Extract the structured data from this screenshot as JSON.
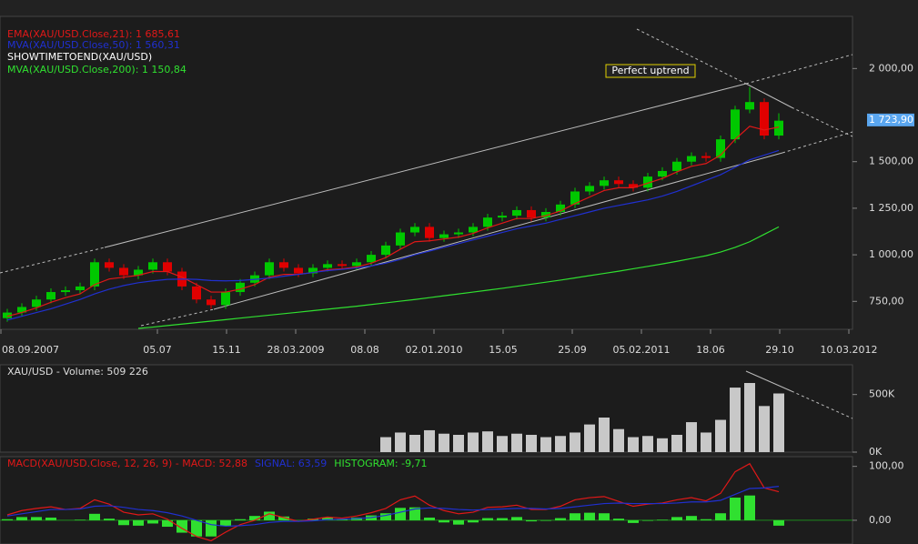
{
  "chart_data": [
    {
      "type": "candlestick",
      "x": [
        2,
        6,
        10,
        14,
        18,
        22,
        26,
        30,
        34,
        38,
        42,
        46,
        50,
        54,
        58,
        62,
        66,
        70,
        74,
        78,
        82,
        86,
        90,
        94,
        98,
        102,
        106,
        110,
        114,
        118,
        122,
        126,
        130,
        134,
        138,
        142,
        146,
        150,
        154,
        158,
        162,
        166,
        170,
        174,
        178,
        182,
        186,
        190,
        194,
        198,
        202,
        206,
        210,
        214
      ],
      "open": [
        660,
        690,
        720,
        760,
        800,
        810,
        830,
        960,
        930,
        890,
        920,
        960,
        910,
        830,
        760,
        730,
        800,
        850,
        890,
        960,
        930,
        900,
        930,
        950,
        940,
        960,
        1000,
        1050,
        1120,
        1150,
        1090,
        1110,
        1120,
        1150,
        1200,
        1210,
        1240,
        1200,
        1230,
        1270,
        1340,
        1370,
        1400,
        1380,
        1360,
        1420,
        1450,
        1500,
        1530,
        1520,
        1620,
        1780,
        1820,
        1640
      ],
      "high": [
        710,
        740,
        780,
        820,
        830,
        850,
        980,
        980,
        950,
        940,
        980,
        980,
        930,
        850,
        780,
        820,
        870,
        910,
        980,
        980,
        950,
        950,
        970,
        970,
        980,
        1020,
        1070,
        1140,
        1170,
        1170,
        1130,
        1140,
        1170,
        1220,
        1230,
        1260,
        1260,
        1250,
        1290,
        1360,
        1390,
        1420,
        1420,
        1400,
        1440,
        1470,
        1520,
        1550,
        1550,
        1640,
        1800,
        1900,
        1840,
        1760
      ],
      "low": [
        640,
        670,
        700,
        740,
        780,
        790,
        810,
        910,
        870,
        870,
        900,
        890,
        810,
        740,
        710,
        710,
        780,
        830,
        870,
        910,
        880,
        880,
        910,
        920,
        920,
        940,
        980,
        1030,
        1100,
        1070,
        1070,
        1090,
        1100,
        1130,
        1180,
        1190,
        1180,
        1180,
        1210,
        1250,
        1320,
        1350,
        1360,
        1340,
        1340,
        1400,
        1430,
        1480,
        1500,
        1500,
        1600,
        1760,
        1620,
        1620
      ],
      "close": [
        690,
        720,
        760,
        800,
        810,
        830,
        960,
        930,
        890,
        920,
        960,
        910,
        830,
        760,
        730,
        800,
        850,
        890,
        960,
        930,
        900,
        930,
        950,
        940,
        960,
        1000,
        1050,
        1120,
        1150,
        1090,
        1110,
        1120,
        1150,
        1200,
        1210,
        1240,
        1200,
        1230,
        1270,
        1340,
        1370,
        1400,
        1380,
        1360,
        1420,
        1450,
        1500,
        1530,
        1520,
        1620,
        1780,
        1820,
        1640,
        1720
      ],
      "up_color": "#00c800",
      "down_color": "#e00000",
      "series": [
        {
          "name": "EMA(XAU/USD.Close,21): 1 685,61",
          "color": "#e01818",
          "values": [
            670,
            690,
            715,
            745,
            770,
            790,
            840,
            870,
            880,
            890,
            910,
            910,
            880,
            840,
            800,
            800,
            815,
            840,
            880,
            895,
            895,
            905,
            920,
            925,
            935,
            955,
            985,
            1030,
            1070,
            1075,
            1085,
            1095,
            1115,
            1145,
            1170,
            1195,
            1195,
            1210,
            1235,
            1275,
            1310,
            1345,
            1360,
            1360,
            1385,
            1410,
            1445,
            1475,
            1490,
            1535,
            1620,
            1690,
            1670,
            1686
          ]
        },
        {
          "name": "MVA(XAU/USD.Close,50): 1 560,31",
          "color": "#2030d0",
          "values": [
            650,
            670,
            690,
            710,
            735,
            760,
            790,
            815,
            835,
            850,
            860,
            868,
            870,
            868,
            862,
            860,
            862,
            868,
            875,
            885,
            895,
            905,
            915,
            922,
            930,
            940,
            955,
            975,
            1000,
            1020,
            1040,
            1060,
            1080,
            1100,
            1120,
            1140,
            1155,
            1170,
            1190,
            1210,
            1230,
            1250,
            1265,
            1280,
            1295,
            1315,
            1340,
            1370,
            1400,
            1430,
            1470,
            1510,
            1535,
            1560
          ]
        },
        {
          "name": "MVA(XAU/USD.Close,200): 1 150,84",
          "color": "#30e030",
          "values": [
            null,
            null,
            null,
            null,
            null,
            null,
            null,
            null,
            null,
            605,
            612,
            620,
            628,
            636,
            644,
            652,
            660,
            668,
            676,
            684,
            692,
            700,
            708,
            716,
            724,
            733,
            742,
            751,
            760,
            770,
            780,
            790,
            800,
            810,
            820,
            831,
            842,
            853,
            864,
            876,
            888,
            900,
            912,
            925,
            938,
            951,
            965,
            980,
            995,
            1015,
            1040,
            1070,
            1110,
            1150
          ]
        }
      ],
      "legend_extra": "SHOWTIMETOEND(XAU/USD)",
      "annotation": "Perfect uptrend",
      "price_marker": {
        "value": 1723.9,
        "label": "1 723,90"
      },
      "xlim": [
        0,
        234.25
      ],
      "xticks": [
        {
          "value": 0.25,
          "label": "08.09.2007"
        },
        {
          "value": 43.25,
          "label": "05.07"
        },
        {
          "value": 62.25,
          "label": "15.11"
        },
        {
          "value": 81.25,
          "label": "28.03.2009"
        },
        {
          "value": 100.25,
          "label": "08.08"
        },
        {
          "value": 119.25,
          "label": "02.01.2010"
        },
        {
          "value": 138.25,
          "label": "15.05"
        },
        {
          "value": 157.25,
          "label": "25.09"
        },
        {
          "value": 176.25,
          "label": "05.02.2011"
        },
        {
          "value": 195.25,
          "label": "18.06"
        },
        {
          "value": 214.25,
          "label": "29.10"
        },
        {
          "value": 233.25,
          "label": "10.03.2012"
        }
      ],
      "ylim": [
        600,
        2280
      ],
      "yticks": [
        {
          "value": 750,
          "label": "750,00"
        },
        {
          "value": 1000,
          "label": "1 000,00"
        },
        {
          "value": 1250,
          "label": "1 250,00"
        },
        {
          "value": 1500,
          "label": "1 500,00"
        },
        {
          "value": 2000,
          "label": "2 000,00"
        }
      ]
    },
    {
      "type": "bar",
      "title": "XAU/USD - Volume: 509 226",
      "x": [
        2,
        6,
        10,
        14,
        18,
        22,
        26,
        30,
        34,
        38,
        42,
        46,
        50,
        54,
        58,
        62,
        66,
        70,
        74,
        78,
        82,
        86,
        90,
        94,
        98,
        102,
        106,
        110,
        114,
        118,
        122,
        126,
        130,
        134,
        138,
        142,
        146,
        150,
        154,
        158,
        162,
        166,
        170,
        174,
        178,
        182,
        186,
        190,
        194,
        198,
        202,
        206,
        210,
        214
      ],
      "values": [
        null,
        null,
        null,
        null,
        null,
        null,
        null,
        null,
        null,
        null,
        null,
        null,
        null,
        null,
        null,
        null,
        null,
        null,
        null,
        null,
        null,
        null,
        null,
        null,
        null,
        null,
        130000,
        170000,
        150000,
        190000,
        160000,
        150000,
        170000,
        180000,
        140000,
        160000,
        150000,
        130000,
        140000,
        170000,
        240000,
        300000,
        200000,
        130000,
        140000,
        120000,
        150000,
        260000,
        170000,
        280000,
        560000,
        600000,
        400000,
        509226
      ],
      "color": "#c8c8c8",
      "xlim": [
        0,
        234.25
      ],
      "ylim": [
        0,
        758000
      ],
      "yticks": [
        {
          "value": 0,
          "label": "0K"
        },
        {
          "value": 500000,
          "label": "500K"
        }
      ]
    },
    {
      "type": "macd",
      "x": [
        2,
        6,
        10,
        14,
        18,
        22,
        26,
        30,
        34,
        38,
        42,
        46,
        50,
        54,
        58,
        62,
        66,
        70,
        74,
        78,
        82,
        86,
        90,
        94,
        98,
        102,
        106,
        110,
        114,
        118,
        122,
        126,
        130,
        134,
        138,
        142,
        146,
        150,
        154,
        158,
        162,
        166,
        170,
        174,
        178,
        182,
        186,
        190,
        194,
        198,
        202,
        206,
        210,
        214
      ],
      "series": [
        {
          "name": "MACD(XAU/USD.Close, 12, 26, 9) -  MACD: 52,88",
          "color": "#e01818",
          "style": "line",
          "values": [
            10,
            18,
            22,
            25,
            20,
            22,
            38,
            30,
            15,
            10,
            12,
            2,
            -15,
            -30,
            -38,
            -22,
            -8,
            0,
            12,
            5,
            -2,
            2,
            6,
            4,
            8,
            14,
            22,
            38,
            45,
            28,
            18,
            12,
            15,
            24,
            25,
            28,
            20,
            20,
            26,
            38,
            42,
            44,
            35,
            26,
            30,
            32,
            38,
            42,
            36,
            50,
            90,
            105,
            60,
            53
          ]
        },
        {
          "name": "SIGNAL: 63,59",
          "color": "#2030d0",
          "style": "line",
          "values": [
            8,
            12,
            16,
            20,
            20,
            21,
            26,
            27,
            24,
            20,
            18,
            14,
            8,
            0,
            -8,
            -11,
            -10,
            -8,
            -4,
            -2,
            -2,
            -1,
            1,
            2,
            3,
            5,
            9,
            15,
            21,
            23,
            22,
            20,
            19,
            20,
            21,
            22,
            22,
            21,
            22,
            25,
            28,
            31,
            32,
            31,
            31,
            31,
            32,
            34,
            34,
            37,
            48,
            59,
            60,
            63
          ]
        },
        {
          "name": "HISTOGRAM: -9,71",
          "color": "#30e030",
          "style": "histogram",
          "values": [
            2,
            6,
            6,
            5,
            0,
            1,
            12,
            3,
            -9,
            -10,
            -6,
            -12,
            -23,
            -30,
            -30,
            -11,
            2,
            8,
            16,
            7,
            0,
            3,
            5,
            2,
            5,
            9,
            13,
            23,
            24,
            5,
            -4,
            -8,
            -4,
            4,
            4,
            6,
            -2,
            -1,
            4,
            13,
            14,
            13,
            3,
            -5,
            -1,
            1,
            6,
            8,
            2,
            13,
            42,
            46,
            0,
            -10
          ]
        }
      ],
      "xlim": [
        0,
        234.25
      ],
      "ylim": [
        -44,
        118
      ],
      "yticks": [
        {
          "value": 0,
          "label": "0,00"
        },
        {
          "value": 100,
          "label": "100,00"
        }
      ]
    }
  ]
}
